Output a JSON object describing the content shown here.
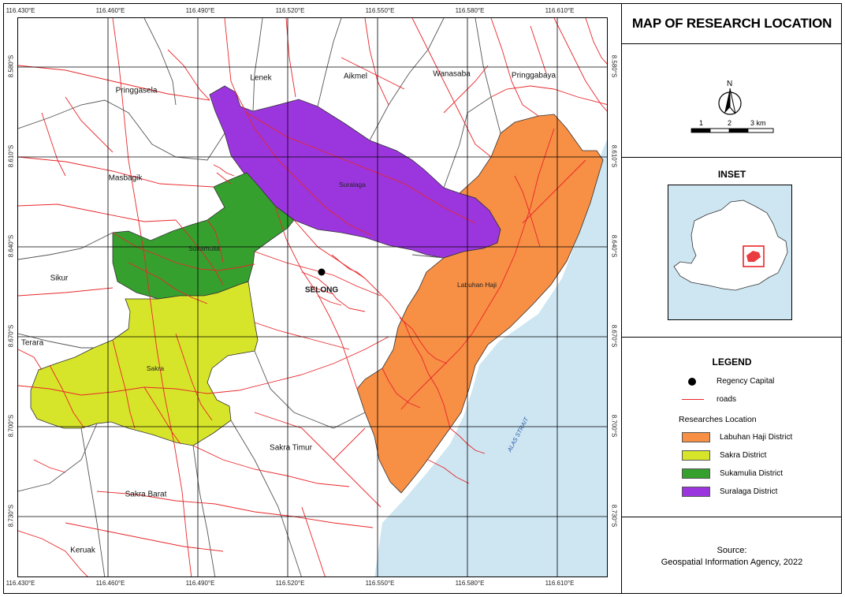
{
  "title": "MAP OF RESEARCH LOCATION",
  "map": {
    "top_ticks": [
      "116.430°E",
      "116.460°E",
      "116.490°E",
      "116.520°E",
      "116.550°E",
      "116.580°E",
      "116.610°E"
    ],
    "bottom_ticks": [
      "116.430°E",
      "116.460°E",
      "116.490°E",
      "116.520°E",
      "116.550°E",
      "116.580°E",
      "116.610°E"
    ],
    "left_ticks": [
      "8.580°S",
      "8.610°S",
      "8.640°S",
      "8.670°S",
      "8.700°S",
      "8.730°S"
    ],
    "right_ticks": [
      "8.580°S",
      "8.610°S",
      "8.640°S",
      "8.670°S",
      "8.700°S",
      "8.730°S"
    ],
    "places": {
      "pringgasela": "Pringgasela",
      "lenek": "Lenek",
      "aikmel": "Aikmel",
      "wanasaba": "Wanasaba",
      "pringgabaya": "Pringgabaya",
      "masbagik": "Masbagik",
      "sikur": "Sikur",
      "terara": "Terara",
      "sakra_timur": "Sakra Timur",
      "sakra_barat": "Sakra Barat",
      "keruak": "Keruak",
      "selong": "SELONG"
    },
    "district_labels": {
      "suralaga": "Suralaga",
      "sukamulia": "Sukamulia",
      "sakra": "Sakra",
      "labuhan_haji": "Labuhan Haji"
    },
    "strait": "ALAS STRAIT"
  },
  "north": {
    "letter": "N"
  },
  "scale": {
    "labels": [
      "1",
      "2",
      "3 km"
    ]
  },
  "inset": {
    "title": "INSET"
  },
  "legend": {
    "title": "LEGEND",
    "capital": "Regency Capital",
    "roads": "roads",
    "group": "Researches Location",
    "districts": [
      {
        "label": "Labuhan Haji District",
        "color": "#f78f45"
      },
      {
        "label": "Sakra District",
        "color": "#d7e52a"
      },
      {
        "label": "Sukamulia District",
        "color": "#36a02f"
      },
      {
        "label": "Suralaga District",
        "color": "#9b36de"
      }
    ]
  },
  "source": {
    "heading": "Source:",
    "text": "Geospatial Information Agency, 2022"
  },
  "colors": {
    "sea": "#cde6f2",
    "road": "#e8262a",
    "boundary": "#444444",
    "labuhan_haji": "#f78f45",
    "sakra": "#d7e52a",
    "sukamulia": "#36a02f",
    "suralaga": "#9b36de"
  }
}
